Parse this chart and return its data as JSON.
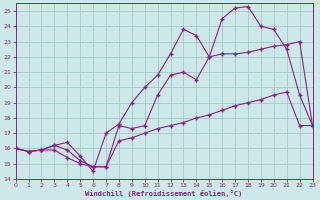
{
  "bg_color": "#cce8e8",
  "grid_color": "#aacccc",
  "line_color": "#882288",
  "xlabel": "Windchill (Refroidissement éolien,°C)",
  "xlim": [
    0,
    23
  ],
  "ylim": [
    14,
    25.5
  ],
  "yticks": [
    14,
    15,
    16,
    17,
    18,
    19,
    20,
    21,
    22,
    23,
    24,
    25
  ],
  "xticks": [
    0,
    1,
    2,
    3,
    4,
    5,
    6,
    7,
    8,
    9,
    10,
    11,
    12,
    13,
    14,
    15,
    16,
    17,
    18,
    19,
    20,
    21,
    22,
    23
  ],
  "line1_x": [
    0,
    1,
    2,
    3,
    4,
    5,
    6,
    7,
    8,
    9,
    10,
    11,
    12,
    13,
    14,
    15,
    16,
    17,
    18,
    19,
    20,
    21,
    22,
    23
  ],
  "line1_y": [
    16.0,
    15.8,
    15.9,
    16.2,
    15.9,
    15.2,
    14.8,
    14.8,
    16.5,
    16.7,
    17.0,
    17.3,
    17.5,
    17.7,
    18.0,
    18.2,
    18.5,
    18.8,
    19.0,
    19.2,
    19.5,
    19.7,
    17.5,
    17.5
  ],
  "line2_x": [
    0,
    1,
    2,
    3,
    4,
    5,
    6,
    7,
    8,
    9,
    10,
    11,
    12,
    13,
    14,
    15,
    16,
    17,
    18,
    19,
    20,
    21,
    22,
    23
  ],
  "line2_y": [
    16.0,
    15.8,
    15.9,
    15.9,
    15.4,
    15.0,
    14.8,
    14.8,
    17.5,
    17.3,
    17.5,
    19.5,
    20.8,
    21.0,
    20.5,
    22.0,
    22.2,
    22.2,
    22.3,
    22.5,
    22.7,
    22.8,
    23.0,
    17.5
  ],
  "line3_x": [
    0,
    1,
    2,
    3,
    4,
    5,
    6,
    7,
    8,
    9,
    10,
    11,
    12,
    13,
    14,
    15,
    16,
    17,
    18,
    19,
    20,
    21,
    22,
    23
  ],
  "line3_y": [
    16.0,
    15.8,
    15.9,
    16.2,
    16.4,
    15.5,
    14.5,
    17.0,
    17.6,
    19.0,
    20.0,
    20.8,
    22.2,
    23.8,
    23.4,
    22.0,
    24.5,
    25.2,
    25.3,
    24.0,
    23.8,
    22.5,
    19.5,
    17.5
  ]
}
